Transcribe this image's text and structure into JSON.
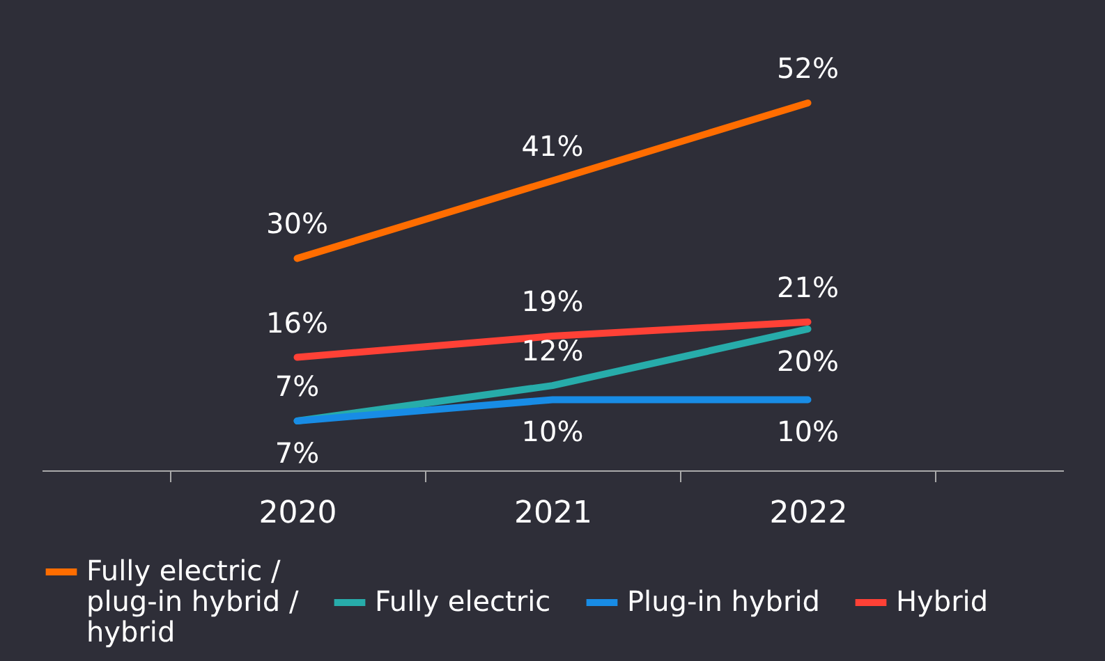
{
  "chart_data": {
    "type": "line",
    "categories": [
      "2020",
      "2021",
      "2022"
    ],
    "series": [
      {
        "name": "Fully electric / plug-in hybrid / hybrid",
        "color": "#ff6d00",
        "values": [
          30,
          41,
          52
        ],
        "value_labels": [
          "30%",
          "41%",
          "52%"
        ]
      },
      {
        "name": "Fully electric",
        "color": "#27acaa",
        "values": [
          7,
          12,
          20
        ],
        "value_labels": [
          "7%",
          "12%",
          "20%"
        ]
      },
      {
        "name": "Plug-in hybrid",
        "color": "#188ce5",
        "values": [
          7,
          10,
          10
        ],
        "value_labels": [
          "7%",
          "10%",
          "10%"
        ]
      },
      {
        "name": "Hybrid",
        "color": "#ff4136",
        "values": [
          16,
          19,
          21
        ],
        "value_labels": [
          "16%",
          "19%",
          "21%"
        ]
      }
    ],
    "legend": "bottom",
    "grid": false,
    "marker": "none",
    "line_style": "solid"
  }
}
